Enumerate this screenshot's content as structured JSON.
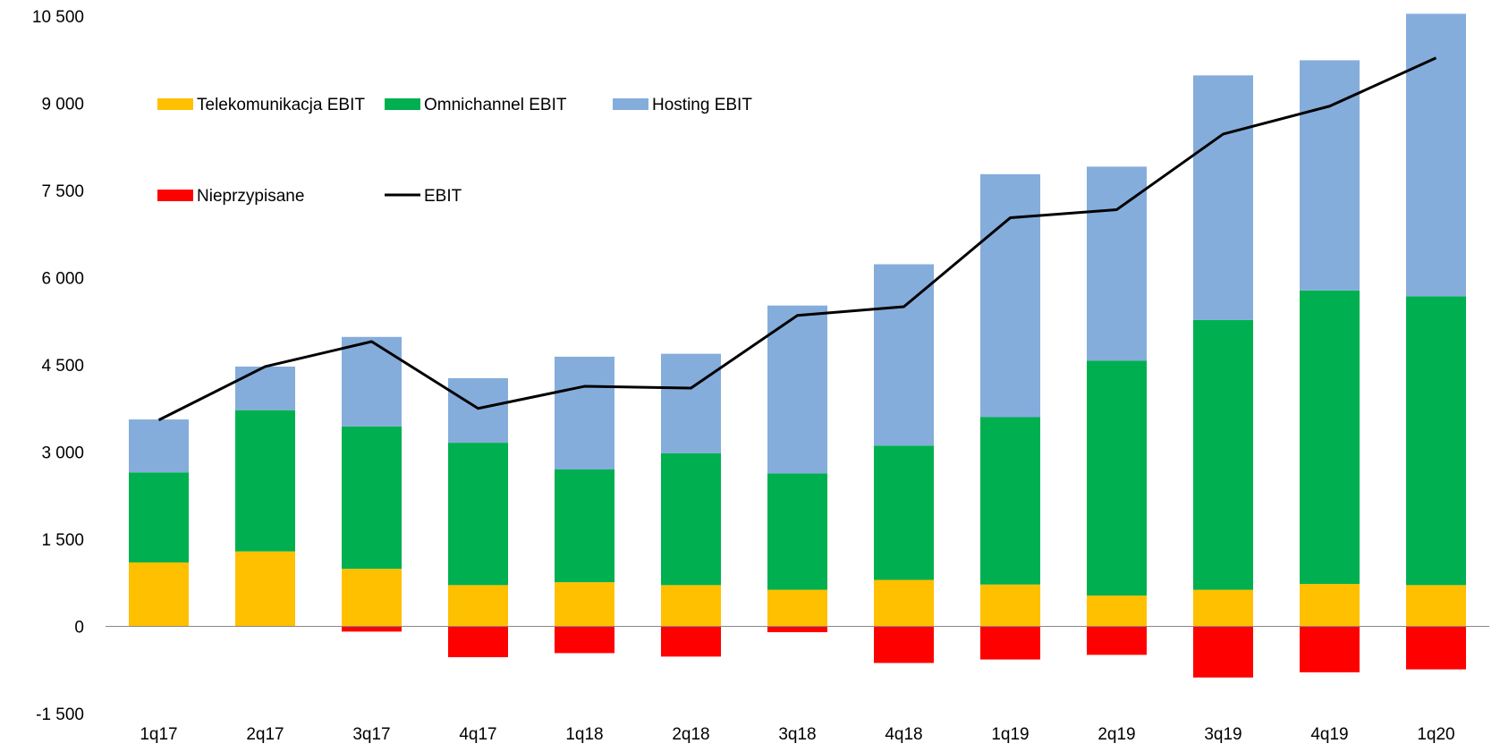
{
  "chart_data": {
    "type": "bar",
    "stacked": true,
    "categories": [
      "1q17",
      "2q17",
      "3q17",
      "4q17",
      "1q18",
      "2q18",
      "3q18",
      "4q18",
      "1q19",
      "2q19",
      "3q19",
      "4q19",
      "1q20"
    ],
    "series": [
      {
        "name": "Telekomunikacja EBIT",
        "color": "#FFC000",
        "kind": "bar",
        "values": [
          1100,
          1290,
          990,
          710,
          760,
          710,
          630,
          800,
          720,
          530,
          630,
          730,
          710
        ]
      },
      {
        "name": "Omnichannel EBIT",
        "color": "#00B050",
        "kind": "bar",
        "values": [
          1550,
          2430,
          2450,
          2450,
          1940,
          2270,
          2000,
          2310,
          2880,
          4040,
          4640,
          5050,
          4970
        ]
      },
      {
        "name": "Hosting EBIT",
        "color": "#85ADDB",
        "kind": "bar",
        "values": [
          910,
          750,
          1540,
          1110,
          1940,
          1710,
          2890,
          3120,
          4180,
          3340,
          4210,
          3960,
          4860
        ]
      },
      {
        "name": "Nieprzypisane",
        "color": "#FF0000",
        "kind": "bar",
        "values": [
          0,
          0,
          -90,
          -530,
          -460,
          -520,
          -100,
          -630,
          -570,
          -490,
          -880,
          -790,
          -740
        ]
      },
      {
        "name": "EBIT",
        "color": "#000000",
        "kind": "line",
        "values": [
          3550,
          4470,
          4900,
          3750,
          4130,
          4100,
          5350,
          5500,
          7030,
          7170,
          8470,
          8950,
          9780
        ]
      }
    ],
    "ylim": [
      -1500,
      10500
    ],
    "yticks": [
      "-1 500",
      "0",
      "1 500",
      "3 000",
      "4 500",
      "6 000",
      "7 500",
      "9 000",
      "10 500"
    ],
    "ytick_values": [
      -1500,
      0,
      1500,
      3000,
      4500,
      6000,
      7500,
      9000,
      10500
    ],
    "grid": false,
    "legend_position": "top-left"
  }
}
